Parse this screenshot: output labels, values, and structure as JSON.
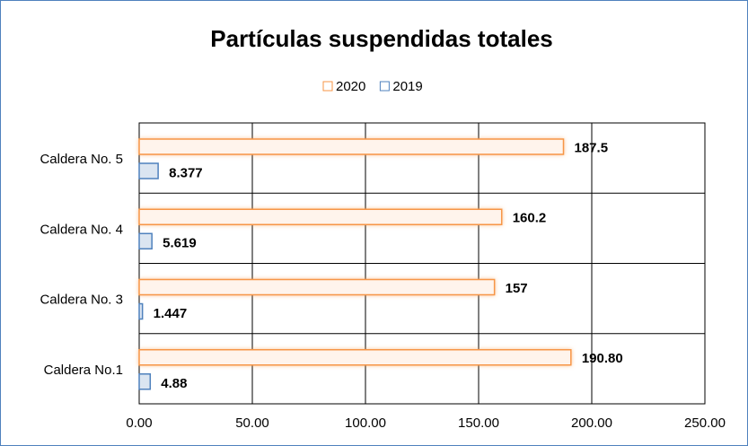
{
  "chart_data": {
    "type": "bar",
    "orientation": "horizontal",
    "title": "Partículas suspendidas totales",
    "categories": [
      "Caldera No.1",
      "Caldera No. 3",
      "Caldera No. 4",
      "Caldera No. 5"
    ],
    "series": [
      {
        "name": "2020",
        "color": "#f79646",
        "values": [
          190.8,
          157,
          160.2,
          187.5
        ],
        "value_labels": [
          "190.80",
          "157",
          "160.2",
          "187.5"
        ]
      },
      {
        "name": "2019",
        "color": "#4f81bd",
        "values": [
          4.88,
          1.447,
          5.619,
          8.377
        ]
      }
    ],
    "xlim": [
      0,
      250
    ],
    "xticks": [
      {
        "value": 0,
        "label": "0.00"
      },
      {
        "value": 50,
        "label": "50.00"
      },
      {
        "value": 100,
        "label": "100.00"
      },
      {
        "value": 150,
        "label": "150.00"
      },
      {
        "value": 200,
        "label": "200.00"
      },
      {
        "value": 250,
        "label": "250.00"
      }
    ],
    "grid": true,
    "legend": "top"
  }
}
